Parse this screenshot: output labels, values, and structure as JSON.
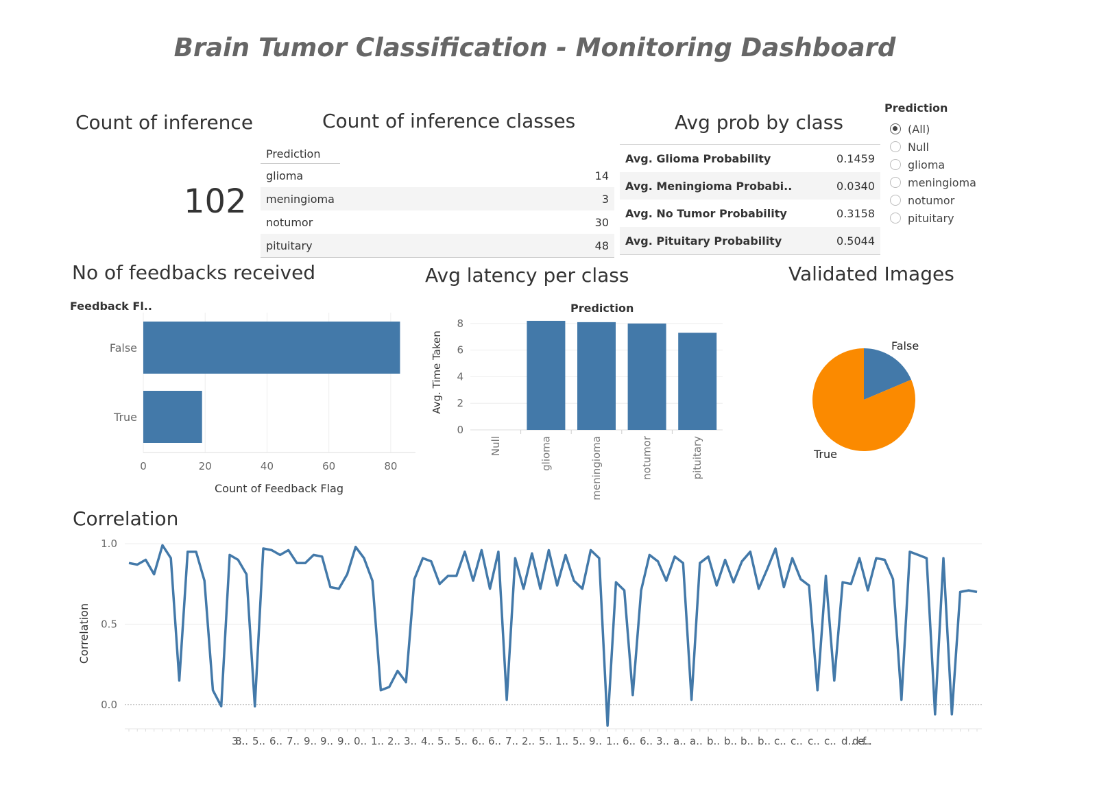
{
  "dashboard_title": "Brain Tumor Classification - Monitoring Dashboard",
  "count_inference": {
    "title": "Count of inference",
    "value": "102"
  },
  "count_classes": {
    "title": "Count of inference classes",
    "header": "Prediction",
    "rows": [
      {
        "label": "glioma",
        "value": "14"
      },
      {
        "label": "meningioma",
        "value": "3"
      },
      {
        "label": "notumor",
        "value": "30"
      },
      {
        "label": "pituitary",
        "value": "48"
      }
    ]
  },
  "avg_prob": {
    "title": "Avg prob by class",
    "rows": [
      {
        "label": "Avg. Glioma Probability",
        "value": "0.1459"
      },
      {
        "label": "Avg. Meningioma Probabi..",
        "value": "0.0340"
      },
      {
        "label": "Avg. No Tumor Probability",
        "value": "0.3158"
      },
      {
        "label": "Avg. Pituitary Probability",
        "value": "0.5044"
      }
    ]
  },
  "filter": {
    "title": "Prediction",
    "options": [
      "(All)",
      "Null",
      "glioma",
      "meningioma",
      "notumor",
      "pituitary"
    ],
    "selected": "(All)"
  },
  "colors": {
    "bar": "#4379a9",
    "pie_false": "#4379a9",
    "pie_true": "#fb8a00",
    "line": "#4379a9"
  },
  "chart_data": [
    {
      "type": "bar",
      "title": "No of feedbacks received",
      "orientation": "horizontal",
      "row_header": "Feedback Fl..",
      "categories": [
        "False",
        "True"
      ],
      "values": [
        83,
        19
      ],
      "xlabel": "Count of Feedback Flag",
      "xlim": [
        0,
        88
      ],
      "xticks": [
        "0",
        "20",
        "40",
        "60",
        "80"
      ],
      "grid": true
    },
    {
      "type": "bar",
      "title": "Avg latency per class",
      "header": "Prediction",
      "categories": [
        "Null",
        "glioma",
        "meningioma",
        "notumor",
        "pituitary"
      ],
      "values": [
        0,
        8.2,
        8.1,
        8.0,
        7.3
      ],
      "ylabel": "Avg. Time Taken",
      "ylim": [
        0,
        8.3
      ],
      "yticks": [
        "0",
        "2",
        "4",
        "6",
        "8"
      ],
      "grid": true
    },
    {
      "type": "pie",
      "title": "Validated Images",
      "labels": [
        "False",
        "True"
      ],
      "values": [
        19,
        83
      ]
    },
    {
      "type": "line",
      "title": "Correlation",
      "ylabel": "Correlation",
      "ylim": [
        -0.15,
        1.0
      ],
      "yticks": [
        "0.0",
        "0.5",
        "1.0"
      ],
      "xtick_labels": [
        "3..",
        "8..",
        "5..",
        "6..",
        "7..",
        "9..",
        "9..",
        "9..",
        "0..",
        "1..",
        "2..",
        "3..",
        "4..",
        "5..",
        "5..",
        "6..",
        "6..",
        "7..",
        "2..",
        "5..",
        "1..",
        "5..",
        "9..",
        "1..",
        "6..",
        "6..",
        "3..",
        "a..",
        "a..",
        "b..",
        "b..",
        "b..",
        "b..",
        "c..",
        "c..",
        "c..",
        "c..",
        "d..",
        "d..",
        "e..",
        "f.."
      ],
      "values": [
        0.88,
        0.87,
        0.9,
        0.81,
        0.99,
        0.91,
        0.15,
        0.95,
        0.95,
        0.77,
        0.09,
        -0.01,
        0.93,
        0.9,
        0.81,
        -0.01,
        0.97,
        0.96,
        0.93,
        0.96,
        0.88,
        0.88,
        0.93,
        0.92,
        0.73,
        0.72,
        0.81,
        0.98,
        0.91,
        0.77,
        0.09,
        0.11,
        0.21,
        0.14,
        0.78,
        0.91,
        0.89,
        0.75,
        0.8,
        0.8,
        0.95,
        0.77,
        0.96,
        0.72,
        0.95,
        0.03,
        0.91,
        0.72,
        0.94,
        0.72,
        0.96,
        0.74,
        0.93,
        0.77,
        0.72,
        0.96,
        0.91,
        -0.13,
        0.76,
        0.71,
        0.06,
        0.71,
        0.93,
        0.89,
        0.77,
        0.92,
        0.88,
        0.03,
        0.88,
        0.92,
        0.74,
        0.9,
        0.76,
        0.89,
        0.95,
        0.72,
        0.84,
        0.97,
        0.73,
        0.91,
        0.78,
        0.74,
        0.09,
        0.8,
        0.15,
        0.76,
        0.75,
        0.91,
        0.71,
        0.91,
        0.9,
        0.78,
        0.03,
        0.95,
        0.93,
        0.91,
        -0.06,
        0.91,
        -0.06,
        0.7,
        0.71,
        0.7
      ],
      "grid": true
    }
  ]
}
